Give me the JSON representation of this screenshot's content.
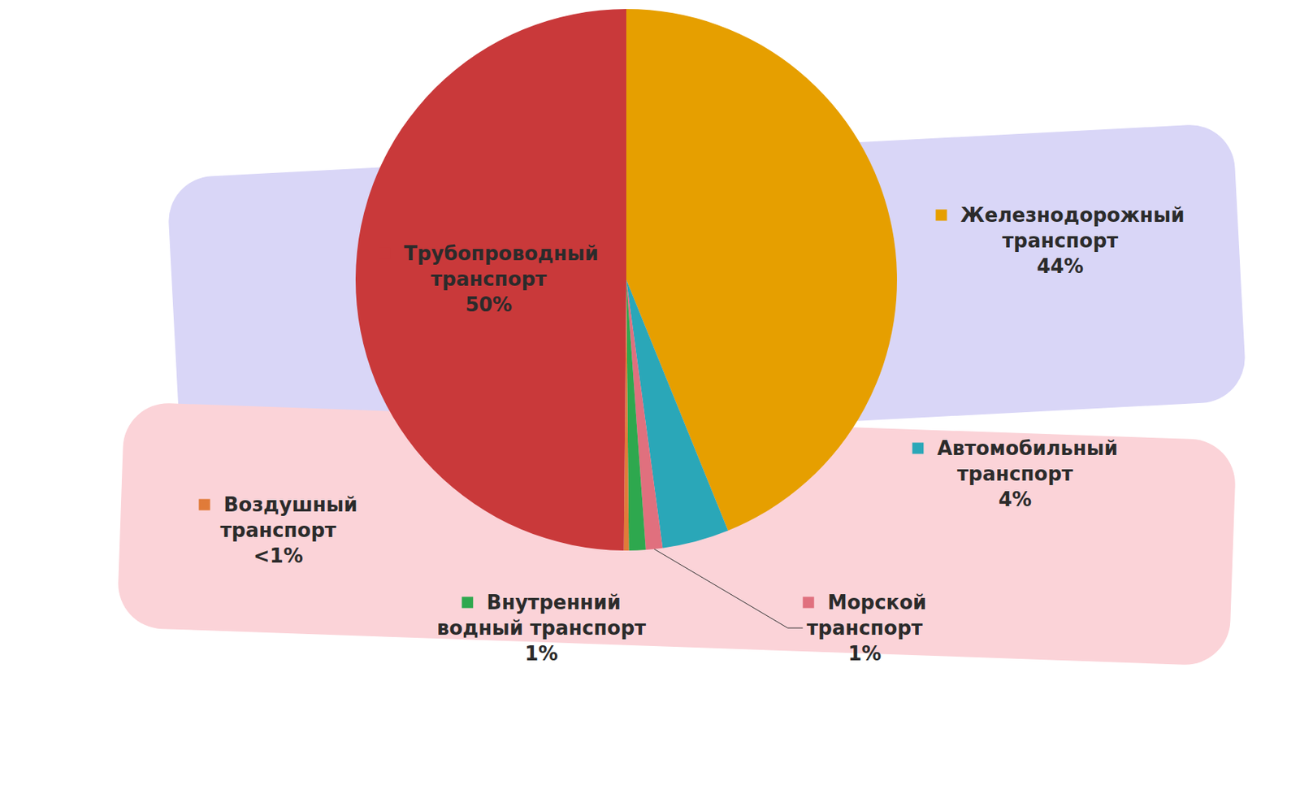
{
  "chart_data": {
    "type": "pie",
    "categories": [
      "Железнодорожный транспорт",
      "Автомобильный транспорт",
      "Морской транспорт",
      "Внутренний водный транспорт",
      "Воздушный транспорт",
      "Трубопроводный транспорт"
    ],
    "values": [
      44,
      4,
      1,
      1,
      0.3,
      50
    ],
    "value_labels": [
      "44%",
      "4%",
      "1%",
      "1%",
      "<1%",
      "50%"
    ],
    "colors": [
      "#e69f00",
      "#2aa7b8",
      "#e0707e",
      "#2ea84e",
      "#e07b39",
      "#c9393a"
    ],
    "data_labels": true
  }
}
